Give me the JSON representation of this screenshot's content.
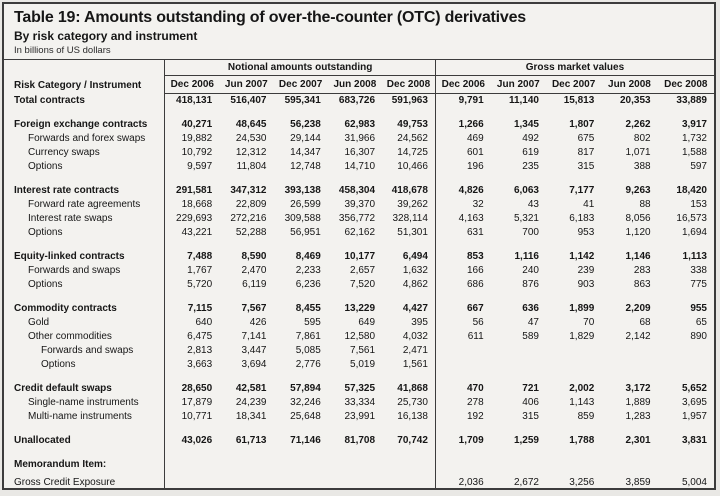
{
  "title": "Table 19: Amounts outstanding of over-the-counter (OTC) derivatives",
  "subtitle": "By risk category and instrument",
  "unit_note": "In billions of US dollars",
  "colors": {
    "background": "#f3f2ef",
    "border": "#3c3c3c",
    "text": "#161616"
  },
  "table": {
    "row_header": "Risk Category / Instrument",
    "column_groups": [
      {
        "label": "Notional amounts outstanding",
        "columns": [
          "Dec 2006",
          "Jun 2007",
          "Dec 2007",
          "Jun 2008",
          "Dec 2008"
        ]
      },
      {
        "label": "Gross market values",
        "columns": [
          "Dec 2006",
          "Jun 2007",
          "Dec 2007",
          "Jun 2008",
          "Dec 2008"
        ]
      }
    ],
    "rows": [
      {
        "label": "Total contracts",
        "level": 0,
        "bold": true,
        "gap_before": false,
        "notional": [
          "418,131",
          "516,407",
          "595,341",
          "683,726",
          "591,963"
        ],
        "gross": [
          "9,791",
          "11,140",
          "15,813",
          "20,353",
          "33,889"
        ]
      },
      {
        "label": "Foreign exchange contracts",
        "level": 0,
        "bold": true,
        "gap_before": true,
        "notional": [
          "40,271",
          "48,645",
          "56,238",
          "62,983",
          "49,753"
        ],
        "gross": [
          "1,266",
          "1,345",
          "1,807",
          "2,262",
          "3,917"
        ]
      },
      {
        "label": "Forwards and forex swaps",
        "level": 1,
        "bold": false,
        "gap_before": false,
        "notional": [
          "19,882",
          "24,530",
          "29,144",
          "31,966",
          "24,562"
        ],
        "gross": [
          "469",
          "492",
          "675",
          "802",
          "1,732"
        ]
      },
      {
        "label": "Currency swaps",
        "level": 1,
        "bold": false,
        "gap_before": false,
        "notional": [
          "10,792",
          "12,312",
          "14,347",
          "16,307",
          "14,725"
        ],
        "gross": [
          "601",
          "619",
          "817",
          "1,071",
          "1,588"
        ]
      },
      {
        "label": "Options",
        "level": 1,
        "bold": false,
        "gap_before": false,
        "notional": [
          "9,597",
          "11,804",
          "12,748",
          "14,710",
          "10,466"
        ],
        "gross": [
          "196",
          "235",
          "315",
          "388",
          "597"
        ]
      },
      {
        "label": "Interest rate contracts",
        "level": 0,
        "bold": true,
        "gap_before": true,
        "notional": [
          "291,581",
          "347,312",
          "393,138",
          "458,304",
          "418,678"
        ],
        "gross": [
          "4,826",
          "6,063",
          "7,177",
          "9,263",
          "18,420"
        ]
      },
      {
        "label": "Forward rate agreements",
        "level": 1,
        "bold": false,
        "gap_before": false,
        "notional": [
          "18,668",
          "22,809",
          "26,599",
          "39,370",
          "39,262"
        ],
        "gross": [
          "32",
          "43",
          "41",
          "88",
          "153"
        ]
      },
      {
        "label": "Interest rate swaps",
        "level": 1,
        "bold": false,
        "gap_before": false,
        "notional": [
          "229,693",
          "272,216",
          "309,588",
          "356,772",
          "328,114"
        ],
        "gross": [
          "4,163",
          "5,321",
          "6,183",
          "8,056",
          "16,573"
        ]
      },
      {
        "label": "Options",
        "level": 1,
        "bold": false,
        "gap_before": false,
        "notional": [
          "43,221",
          "52,288",
          "56,951",
          "62,162",
          "51,301"
        ],
        "gross": [
          "631",
          "700",
          "953",
          "1,120",
          "1,694"
        ]
      },
      {
        "label": "Equity-linked contracts",
        "level": 0,
        "bold": true,
        "gap_before": true,
        "notional": [
          "7,488",
          "8,590",
          "8,469",
          "10,177",
          "6,494"
        ],
        "gross": [
          "853",
          "1,116",
          "1,142",
          "1,146",
          "1,113"
        ]
      },
      {
        "label": "Forwards and swaps",
        "level": 1,
        "bold": false,
        "gap_before": false,
        "notional": [
          "1,767",
          "2,470",
          "2,233",
          "2,657",
          "1,632"
        ],
        "gross": [
          "166",
          "240",
          "239",
          "283",
          "338"
        ]
      },
      {
        "label": "Options",
        "level": 1,
        "bold": false,
        "gap_before": false,
        "notional": [
          "5,720",
          "6,119",
          "6,236",
          "7,520",
          "4,862"
        ],
        "gross": [
          "686",
          "876",
          "903",
          "863",
          "775"
        ]
      },
      {
        "label": "Commodity contracts",
        "level": 0,
        "bold": true,
        "gap_before": true,
        "notional": [
          "7,115",
          "7,567",
          "8,455",
          "13,229",
          "4,427"
        ],
        "gross": [
          "667",
          "636",
          "1,899",
          "2,209",
          "955"
        ]
      },
      {
        "label": "Gold",
        "level": 1,
        "bold": false,
        "gap_before": false,
        "notional": [
          "640",
          "426",
          "595",
          "649",
          "395"
        ],
        "gross": [
          "56",
          "47",
          "70",
          "68",
          "65"
        ]
      },
      {
        "label": "Other commodities",
        "level": 1,
        "bold": false,
        "gap_before": false,
        "notional": [
          "6,475",
          "7,141",
          "7,861",
          "12,580",
          "4,032"
        ],
        "gross": [
          "611",
          "589",
          "1,829",
          "2,142",
          "890"
        ]
      },
      {
        "label": "Forwards and swaps",
        "level": 2,
        "bold": false,
        "gap_before": false,
        "notional": [
          "2,813",
          "3,447",
          "5,085",
          "7,561",
          "2,471"
        ],
        "gross": [
          "",
          "",
          "",
          "",
          ""
        ]
      },
      {
        "label": "Options",
        "level": 2,
        "bold": false,
        "gap_before": false,
        "notional": [
          "3,663",
          "3,694",
          "2,776",
          "5,019",
          "1,561"
        ],
        "gross": [
          "",
          "",
          "",
          "",
          ""
        ]
      },
      {
        "label": "Credit default swaps",
        "level": 0,
        "bold": true,
        "gap_before": true,
        "notional": [
          "28,650",
          "42,581",
          "57,894",
          "57,325",
          "41,868"
        ],
        "gross": [
          "470",
          "721",
          "2,002",
          "3,172",
          "5,652"
        ]
      },
      {
        "label": "Single-name instruments",
        "level": 1,
        "bold": false,
        "gap_before": false,
        "notional": [
          "17,879",
          "24,239",
          "32,246",
          "33,334",
          "25,730"
        ],
        "gross": [
          "278",
          "406",
          "1,143",
          "1,889",
          "3,695"
        ]
      },
      {
        "label": "Multi-name instruments",
        "level": 1,
        "bold": false,
        "gap_before": false,
        "notional": [
          "10,771",
          "18,341",
          "25,648",
          "23,991",
          "16,138"
        ],
        "gross": [
          "192",
          "315",
          "859",
          "1,283",
          "1,957"
        ]
      },
      {
        "label": "Unallocated",
        "level": 0,
        "bold": true,
        "gap_before": true,
        "notional": [
          "43,026",
          "61,713",
          "71,146",
          "81,708",
          "70,742"
        ],
        "gross": [
          "1,709",
          "1,259",
          "1,788",
          "2,301",
          "3,831"
        ]
      },
      {
        "label": "Memorandum Item:",
        "level": 0,
        "bold": true,
        "gap_before": true,
        "notional": [
          "",
          "",
          "",
          "",
          ""
        ],
        "gross": [
          "",
          "",
          "",
          "",
          ""
        ]
      },
      {
        "label": "Gross Credit Exposure",
        "level": 0,
        "bold": false,
        "gap_before": false,
        "notional": [
          "",
          "",
          "",
          "",
          ""
        ],
        "gross": [
          "2,036",
          "2,672",
          "3,256",
          "3,859",
          "5,004"
        ]
      }
    ]
  }
}
